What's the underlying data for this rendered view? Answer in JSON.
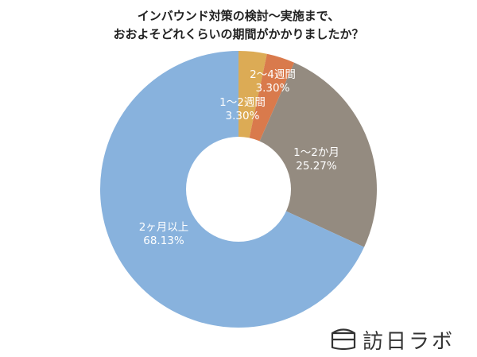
{
  "chart_data": {
    "type": "pie",
    "donut": true,
    "title_lines": [
      "インバウンド対策の検討〜実施まで、",
      "おおよそどれくらいの期間がかかりましたか？"
    ],
    "categories": [
      "1〜2週間",
      "2〜4週間",
      "1〜2か月",
      "2ヶ月以上"
    ],
    "values": [
      3.3,
      3.3,
      25.27,
      68.13
    ],
    "value_labels": [
      "3.30%",
      "3.30%",
      "25.27%",
      "68.13%"
    ],
    "colors": [
      "#dcab55",
      "#d97a4c",
      "#948b80",
      "#88b2dd"
    ],
    "legend": "none"
  },
  "logo": {
    "text": "訪日ラボ",
    "icon": "box-outline-icon"
  }
}
